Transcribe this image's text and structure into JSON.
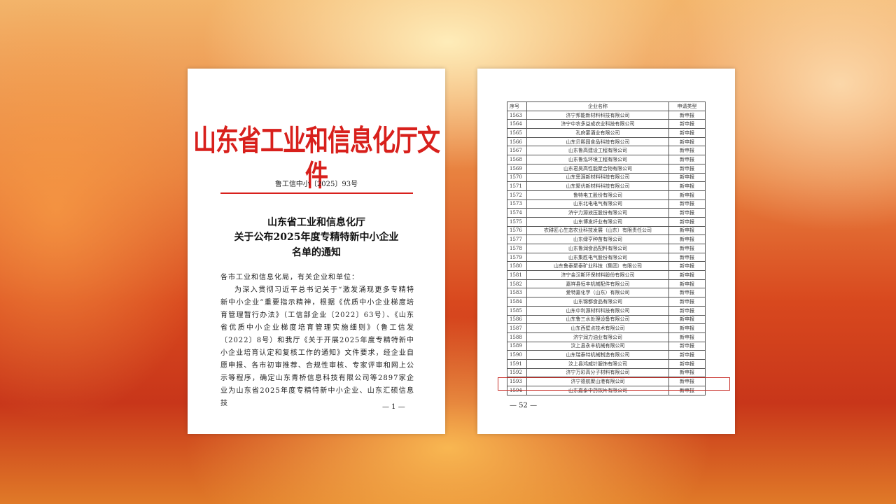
{
  "left_page": {
    "title": "山东省工业和信息化厅文件",
    "doc_number": "鲁工信中小〔2025〕93号",
    "subtitle": [
      "山东省工业和信息化厅",
      "关于公布2025年度专精特新中小企业",
      "名单的通知"
    ],
    "salutation": "各市工业和信息化局，有关企业和单位：",
    "paragraph": "为深入贯彻习近平总书记关于“激发涌现更多专精特新中小企业”重要指示精神，根据《优质中小企业梯度培育管理暂行办法》（工信部企业〔2022〕63号）、《山东省优质中小企业梯度培育管理实施细则》（鲁工信发〔2022〕8号）和我厅《关于开展2025年度专精特新中小企业培育认定和复核工作的通知》文件要求，经企业自愿申报、各市初审推荐、合规性审核、专家评审和网上公示等程序，确定山东青桥信息科技有限公司等2897家企业为山东省2025年度专精特新中小企业、山东汇硕信息技",
    "page_number": "— 1 —",
    "title_color": "#d8201c"
  },
  "right_page": {
    "headers": [
      "序号",
      "企业名称",
      "申请类型"
    ],
    "rows": [
      [
        "1563",
        "济宁邦能新材料科技有限公司",
        "新申报"
      ],
      [
        "1564",
        "济宁中农多益成农业科技有限公司",
        "新申报"
      ],
      [
        "1565",
        "孔府宴酒业有限公司",
        "新申报"
      ],
      [
        "1566",
        "山东贝熙园食品科技有限公司",
        "新申报"
      ],
      [
        "1567",
        "山东鲁高建设工程有限公司",
        "新申报"
      ],
      [
        "1568",
        "山东鲁泓环境工程有限公司",
        "新申报"
      ],
      [
        "1569",
        "山东君昊高性能聚合物有限公司",
        "新申报"
      ],
      [
        "1570",
        "山东思源新材料科技有限公司",
        "新申报"
      ],
      [
        "1571",
        "山东聚优新材料科技有限公司",
        "新申报"
      ],
      [
        "1572",
        "鲁特电工股份有限公司",
        "新申报"
      ],
      [
        "1573",
        "山东北电电气有限公司",
        "新申报"
      ],
      [
        "1574",
        "济宁力源液压股份有限公司",
        "新申报"
      ],
      [
        "1575",
        "山东博发纤业有限公司",
        "新申报"
      ],
      [
        "1576",
        "农耕匠心生态农业科技发展（山东）有限责任公司",
        "新申报"
      ],
      [
        "1577",
        "山东绿亨种苗有限公司",
        "新申报"
      ],
      [
        "1578",
        "山东鲁润食品配料有限公司",
        "新申报"
      ],
      [
        "1579",
        "山东集胜电气股份有限公司",
        "新申报"
      ],
      [
        "1580",
        "山东鲁泰聚泰矿业科技（集团）有限公司",
        "新申报"
      ],
      [
        "1581",
        "济宁金汉斯环保材料股份有限公司",
        "新申报"
      ],
      [
        "1582",
        "嘉祥县恒丰机械配件有限公司",
        "新申报"
      ],
      [
        "1583",
        "爱特嘉化学（山东）有限公司",
        "新申报"
      ],
      [
        "1584",
        "山东锦都食品有限公司",
        "新申报"
      ],
      [
        "1585",
        "山东中利源材料科技有限公司",
        "新申报"
      ],
      [
        "1586",
        "山东鲁三水处理设备有限公司",
        "新申报"
      ],
      [
        "1587",
        "山东西壁点技术有限公司",
        "新申报"
      ],
      [
        "1588",
        "济宁润力油业有限公司",
        "新申报"
      ],
      [
        "1589",
        "汶上县永丰机械有限公司",
        "新申报"
      ],
      [
        "1590",
        "山东瑞泰特机械制造有限公司",
        "新申报"
      ],
      [
        "1591",
        "汶上县鸿威针服饰有限公司",
        "新申报"
      ],
      [
        "1592",
        "济宁万彩高分子材料有限公司",
        "新申报"
      ],
      [
        "1593",
        "济宁德航聚山港有限公司",
        "新申报"
      ],
      [
        "1594",
        "山东嘉泰中药饮片有限公司",
        "新申报"
      ]
    ],
    "highlighted_row": "1593",
    "page_number": "— 52 —",
    "highlight_color": "#c8302a"
  }
}
